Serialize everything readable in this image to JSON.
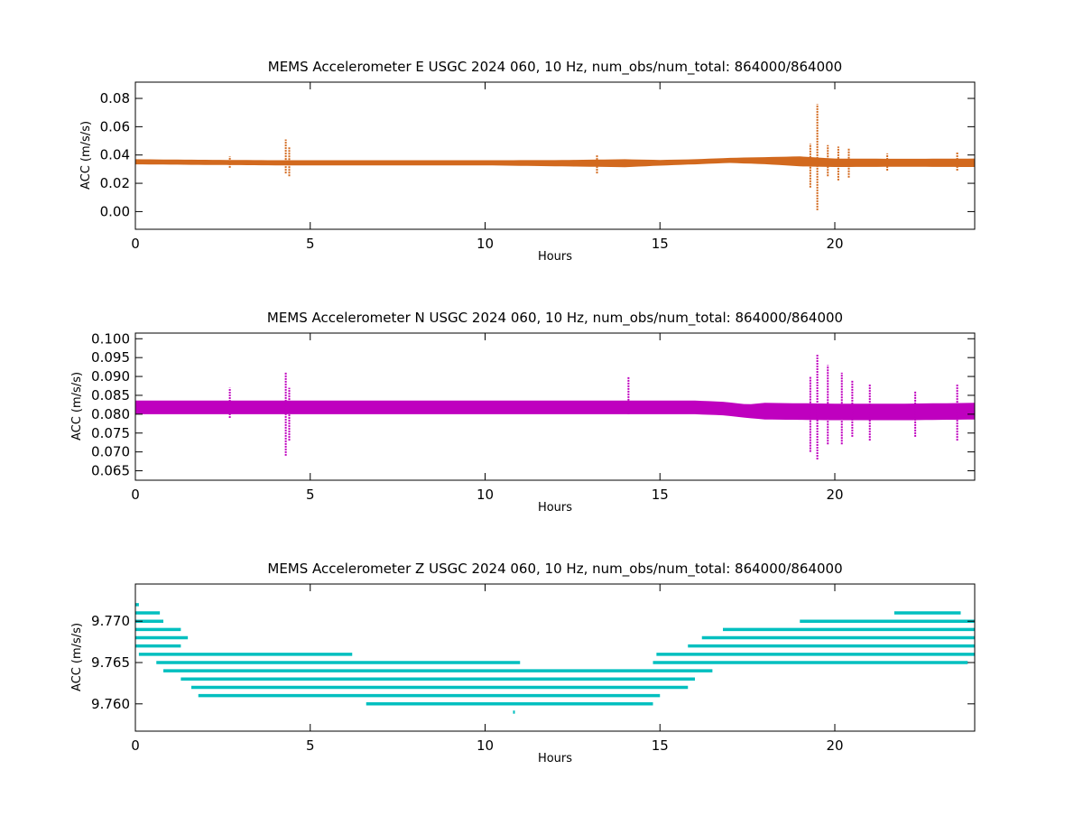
{
  "chart_data": [
    {
      "type": "scatter",
      "title": "MEMS Accelerometer E USGC 2024 060, 10 Hz, num_obs/num_total: 864000/864000",
      "xlabel": "Hours",
      "ylabel": "ACC (m/s/s)",
      "xlim": [
        0,
        24
      ],
      "ylim": [
        -0.0125,
        0.0915
      ],
      "xticks": [
        0,
        5,
        10,
        15,
        20
      ],
      "xtick_labels": [
        "0",
        "5",
        "10",
        "15",
        "20"
      ],
      "yticks": [
        0.0,
        0.02,
        0.04,
        0.06,
        0.08
      ],
      "ytick_labels": [
        "0.00",
        "0.02",
        "0.04",
        "0.06",
        "0.08"
      ],
      "color": "#d2691e",
      "grid": false,
      "band": {
        "x": [
          0,
          2,
          4,
          6,
          8,
          10,
          12,
          14,
          15,
          16,
          17,
          18,
          19,
          20,
          22,
          24
        ],
        "center": [
          0.0352,
          0.0348,
          0.0345,
          0.0345,
          0.0345,
          0.0345,
          0.0342,
          0.0342,
          0.0345,
          0.0352,
          0.0362,
          0.036,
          0.0355,
          0.0345,
          0.0345,
          0.0345
        ],
        "halfwidth": [
          0.0018,
          0.0018,
          0.0018,
          0.0018,
          0.0018,
          0.0018,
          0.0022,
          0.0028,
          0.002,
          0.0018,
          0.0018,
          0.0025,
          0.0035,
          0.003,
          0.0028,
          0.003
        ]
      },
      "spikes": [
        {
          "x": 2.7,
          "ymin": 0.031,
          "ymax": 0.039
        },
        {
          "x": 4.3,
          "ymin": 0.027,
          "ymax": 0.051
        },
        {
          "x": 4.4,
          "ymin": 0.025,
          "ymax": 0.046
        },
        {
          "x": 13.2,
          "ymin": 0.027,
          "ymax": 0.04
        },
        {
          "x": 19.3,
          "ymin": 0.017,
          "ymax": 0.048
        },
        {
          "x": 19.5,
          "ymin": 0.001,
          "ymax": 0.076
        },
        {
          "x": 19.8,
          "ymin": 0.025,
          "ymax": 0.047
        },
        {
          "x": 20.1,
          "ymin": 0.022,
          "ymax": 0.046
        },
        {
          "x": 20.4,
          "ymin": 0.024,
          "ymax": 0.045
        },
        {
          "x": 21.5,
          "ymin": 0.029,
          "ymax": 0.041
        },
        {
          "x": 23.5,
          "ymin": 0.029,
          "ymax": 0.042
        }
      ]
    },
    {
      "type": "scatter",
      "title": "MEMS Accelerometer N USGC 2024 060, 10 Hz, num_obs/num_total: 864000/864000",
      "xlabel": "Hours",
      "ylabel": "ACC (m/s/s)",
      "xlim": [
        0,
        24
      ],
      "ylim": [
        0.0625,
        0.1015
      ],
      "xticks": [
        0,
        5,
        10,
        15,
        20
      ],
      "xtick_labels": [
        "0",
        "5",
        "10",
        "15",
        "20"
      ],
      "yticks": [
        0.065,
        0.07,
        0.075,
        0.08,
        0.085,
        0.09,
        0.095,
        0.1
      ],
      "ytick_labels": [
        "0.065",
        "0.070",
        "0.075",
        "0.080",
        "0.085",
        "0.090",
        "0.095",
        "0.100"
      ],
      "color": "#bf00bf",
      "grid": false,
      "band": {
        "x": [
          0,
          2,
          4,
          6,
          8,
          10,
          12,
          14,
          16,
          16.8,
          17.5,
          18,
          20,
          22,
          24
        ],
        "center": [
          0.0818,
          0.0818,
          0.0818,
          0.0818,
          0.0818,
          0.0818,
          0.0818,
          0.0818,
          0.0818,
          0.0815,
          0.0808,
          0.0808,
          0.0806,
          0.0806,
          0.0808
        ],
        "halfwidth": [
          0.0018,
          0.0018,
          0.0018,
          0.0018,
          0.0018,
          0.0018,
          0.0018,
          0.0018,
          0.0018,
          0.0018,
          0.0018,
          0.0022,
          0.0022,
          0.0022,
          0.0022
        ]
      },
      "spikes": [
        {
          "x": 2.7,
          "ymin": 0.079,
          "ymax": 0.087
        },
        {
          "x": 4.3,
          "ymin": 0.069,
          "ymax": 0.091
        },
        {
          "x": 4.4,
          "ymin": 0.073,
          "ymax": 0.087
        },
        {
          "x": 14.1,
          "ymin": 0.08,
          "ymax": 0.09
        },
        {
          "x": 19.3,
          "ymin": 0.07,
          "ymax": 0.09
        },
        {
          "x": 19.5,
          "ymin": 0.068,
          "ymax": 0.096
        },
        {
          "x": 19.8,
          "ymin": 0.072,
          "ymax": 0.093
        },
        {
          "x": 20.2,
          "ymin": 0.072,
          "ymax": 0.091
        },
        {
          "x": 20.5,
          "ymin": 0.074,
          "ymax": 0.089
        },
        {
          "x": 21.0,
          "ymin": 0.073,
          "ymax": 0.088
        },
        {
          "x": 22.3,
          "ymin": 0.074,
          "ymax": 0.086
        },
        {
          "x": 23.5,
          "ymin": 0.073,
          "ymax": 0.088
        }
      ]
    },
    {
      "type": "scatter",
      "title": "MEMS Accelerometer Z USGC 2024 060, 10 Hz, num_obs/num_total: 864000/864000",
      "xlabel": "Hours",
      "ylabel": "ACC (m/s/s)",
      "xlim": [
        0,
        24
      ],
      "ylim": [
        9.7567,
        9.7745
      ],
      "xticks": [
        0,
        5,
        10,
        15,
        20
      ],
      "xtick_labels": [
        "0",
        "5",
        "10",
        "15",
        "20"
      ],
      "yticks": [
        9.76,
        9.765,
        9.77
      ],
      "ytick_labels": [
        "9.760",
        "9.765",
        "9.770"
      ],
      "color": "#00bfbf",
      "grid": false,
      "quantization_step": 0.001,
      "levels": [
        {
          "y": 9.772,
          "segments": [
            [
              0,
              0.1
            ]
          ]
        },
        {
          "y": 9.771,
          "segments": [
            [
              0,
              0.7
            ],
            [
              21.7,
              23.6
            ]
          ]
        },
        {
          "y": 9.77,
          "segments": [
            [
              0,
              0.8
            ],
            [
              19.0,
              24
            ]
          ]
        },
        {
          "y": 9.769,
          "segments": [
            [
              0,
              1.3
            ],
            [
              16.8,
              24
            ]
          ]
        },
        {
          "y": 9.768,
          "segments": [
            [
              0,
              1.5
            ],
            [
              16.2,
              24
            ]
          ]
        },
        {
          "y": 9.767,
          "segments": [
            [
              0,
              1.3
            ],
            [
              15.8,
              24
            ]
          ]
        },
        {
          "y": 9.766,
          "segments": [
            [
              0.1,
              6.2
            ],
            [
              14.9,
              24
            ]
          ]
        },
        {
          "y": 9.765,
          "segments": [
            [
              0.6,
              11.0
            ],
            [
              14.8,
              23.8
            ]
          ]
        },
        {
          "y": 9.764,
          "segments": [
            [
              0.8,
              16.5
            ]
          ]
        },
        {
          "y": 9.763,
          "segments": [
            [
              1.3,
              16.0
            ]
          ]
        },
        {
          "y": 9.762,
          "segments": [
            [
              1.6,
              15.8
            ]
          ]
        },
        {
          "y": 9.761,
          "segments": [
            [
              1.8,
              15.0
            ]
          ]
        },
        {
          "y": 9.76,
          "segments": [
            [
              6.6,
              14.8
            ]
          ]
        },
        {
          "y": 9.759,
          "segments": [
            [
              10.8,
              10.8
            ]
          ]
        }
      ]
    }
  ]
}
